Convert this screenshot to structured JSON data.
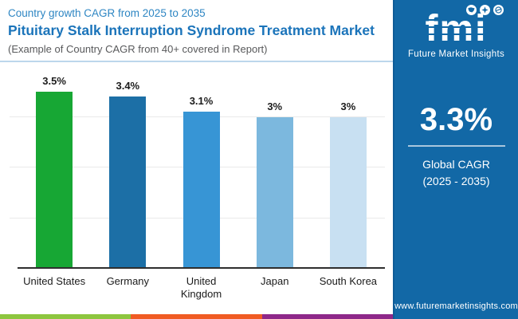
{
  "header": {
    "eyebrow": "Country growth CAGR from 2025 to 2035",
    "title": "Pituitary Stalk Interruption Syndrome Treatment Market",
    "subtitle": "(Example of Country CAGR from 40+ covered in Report)"
  },
  "chart_data": {
    "type": "bar",
    "title": "Country growth CAGR from 2025 to 2035",
    "categories": [
      "United States",
      "Germany",
      "United Kingdom",
      "Japan",
      "South Korea"
    ],
    "values": [
      3.5,
      3.4,
      3.1,
      3.0,
      3.0
    ],
    "value_labels": [
      "3.5%",
      "3.4%",
      "3.1%",
      "3%",
      "3%"
    ],
    "bar_colors": [
      "#17a734",
      "#1c6fa6",
      "#3795d5",
      "#7cb8de",
      "#c8e0f2"
    ],
    "xlabel": "",
    "ylabel": "",
    "ylim": [
      0,
      3.5
    ],
    "gridlines": [
      1,
      2,
      3
    ],
    "grid": "horizontal-only",
    "legend": "none",
    "axis_line_color": "#2e2e2e"
  },
  "panel": {
    "logo_text": "fmi",
    "logo_caption": "Future Market Insights",
    "logo_icons": [
      "map-icon",
      "compass-icon",
      "globe-icon"
    ],
    "stat_value": "3.3%",
    "stat_label_line1": "Global CAGR",
    "stat_label_line2": "(2025 - 2035)",
    "website": "www.futuremarketinsights.com",
    "bg_color": "#1268a6"
  },
  "footer_strip_colors": [
    "#8dc63f",
    "#f05b23",
    "#8e2889"
  ]
}
